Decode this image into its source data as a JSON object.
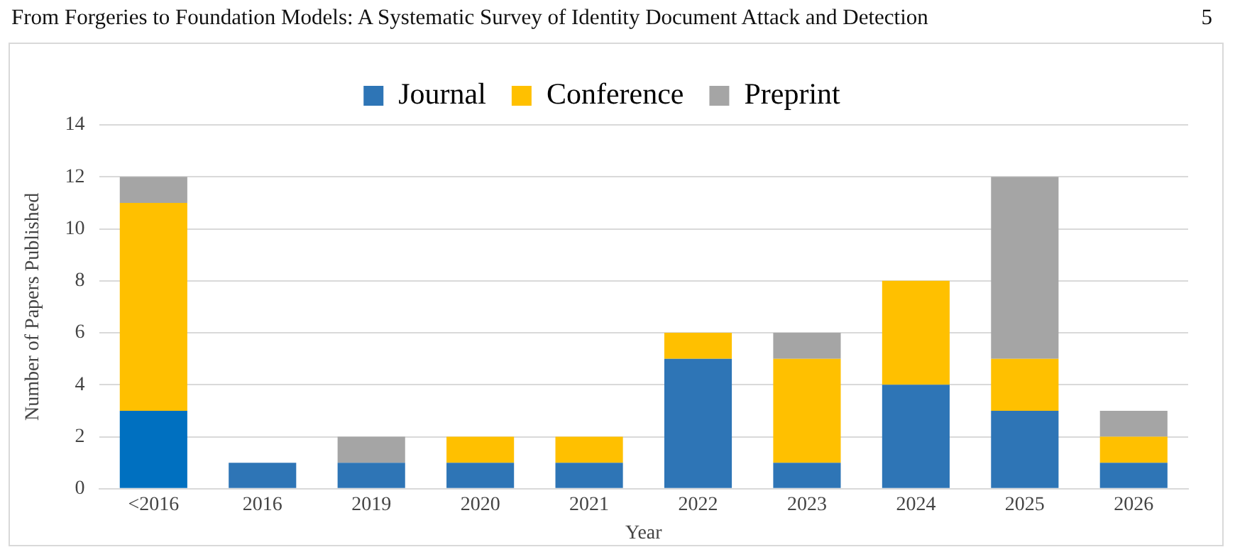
{
  "chart_data": {
    "type": "bar",
    "title": "From Forgeries to Foundation Models: A Systematic Survey of Identity Document Attack and Detection",
    "annotations": [
      "5"
    ],
    "xlabel": "Year",
    "ylabel": "Number of Papers Published",
    "categories": [
      "<2016",
      "2016",
      "2019",
      "2020",
      "2021",
      "2022",
      "2023",
      "2024",
      "2025",
      "2026"
    ],
    "stacked": true,
    "ylim": [
      0,
      14
    ],
    "yticks": [
      0,
      2,
      4,
      6,
      8,
      10,
      12,
      14
    ],
    "grid": "y",
    "legend": "top",
    "series": [
      {
        "name": "Journal",
        "color": "#2e75b6",
        "colors": [
          "#0070c0",
          "#2e75b6",
          "#2e75b6",
          "#2e75b6",
          "#2e75b6",
          "#2e75b6",
          "#2e75b6",
          "#2e75b6",
          "#2e75b6",
          "#2e75b6"
        ],
        "values": [
          3,
          1,
          1,
          1,
          1,
          5,
          1,
          4,
          3,
          1
        ]
      },
      {
        "name": "Conference",
        "color": "#ffc000",
        "values": [
          8,
          0,
          0,
          1,
          1,
          1,
          4,
          4,
          2,
          1
        ]
      },
      {
        "name": "Preprint",
        "color": "#a5a5a5",
        "values": [
          1,
          0,
          1,
          0,
          0,
          0,
          1,
          0,
          7,
          1
        ]
      }
    ]
  }
}
